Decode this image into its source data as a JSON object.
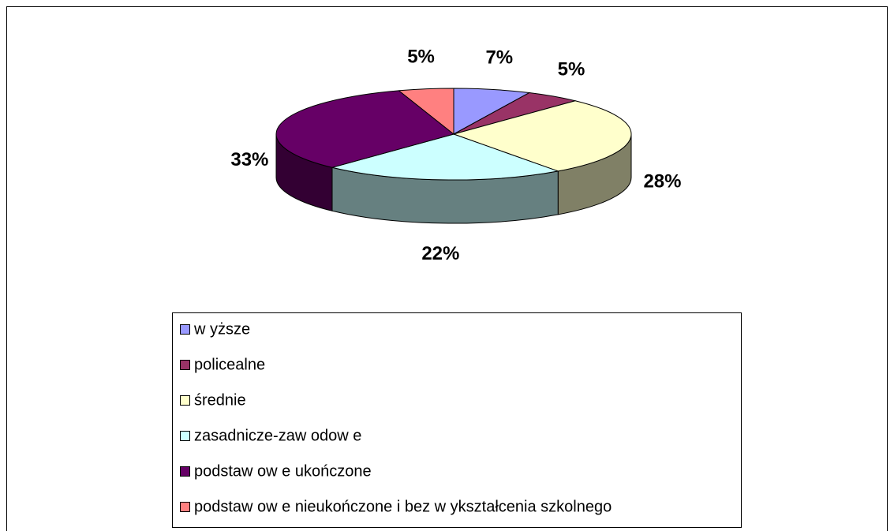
{
  "chart_data": {
    "type": "pie",
    "categories": [
      "w yższe",
      "policealne",
      "średnie",
      "zasadnicze-zaw odow e",
      "podstaw ow e ukończone",
      "podstaw ow e nieukończone i bez w ykształcenia szkolnego"
    ],
    "values": [
      7,
      5,
      28,
      22,
      33,
      5
    ],
    "value_labels": [
      "7%",
      "5%",
      "28%",
      "22%",
      "33%",
      "5%"
    ],
    "colors": [
      "#9999ff",
      "#993366",
      "#ffffcc",
      "#ccffff",
      "#660066",
      "#ff8080"
    ],
    "legend": "bottom"
  }
}
